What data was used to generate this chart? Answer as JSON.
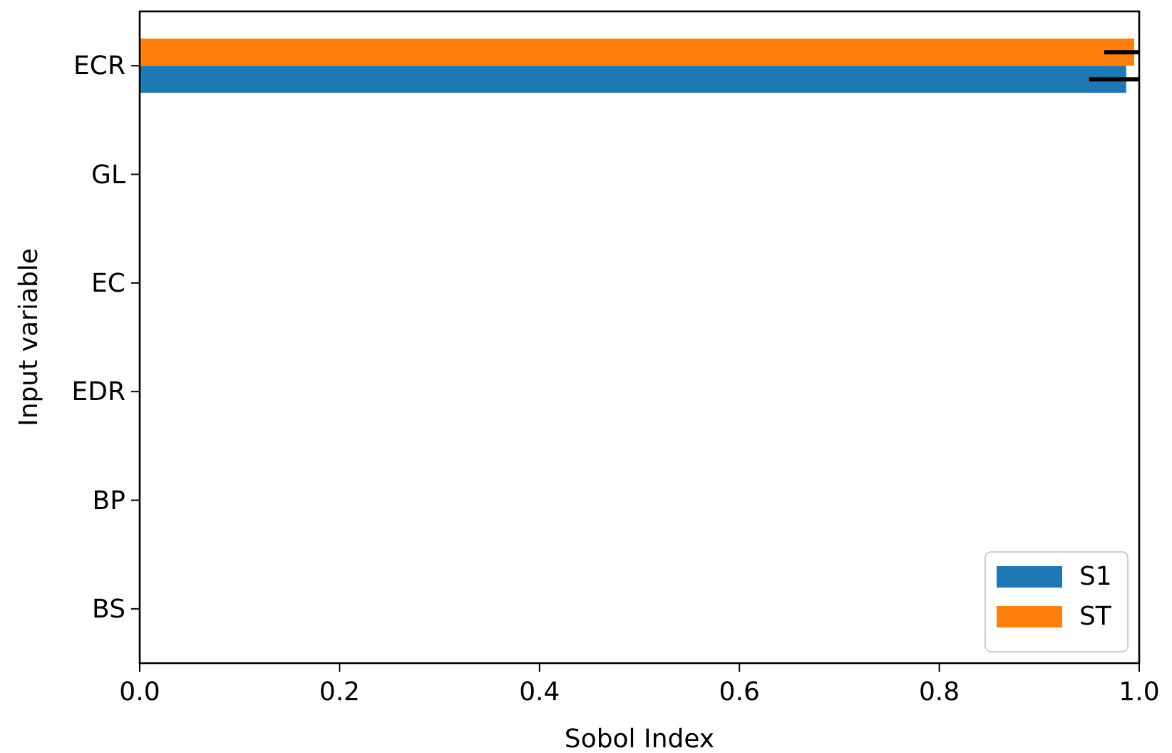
{
  "chart_data": {
    "type": "bar",
    "orientation": "horizontal",
    "xlabel": "Sobol Index",
    "ylabel": "Input variable",
    "categories": [
      "ECR",
      "GL",
      "EC",
      "EDR",
      "BP",
      "BS"
    ],
    "series": [
      {
        "name": "S1",
        "color": "#1f77b4",
        "values": [
          0.987,
          0,
          0,
          0,
          0,
          0
        ],
        "errors": [
          [
            0.95,
            1.0
          ],
          null,
          null,
          null,
          null,
          null
        ]
      },
      {
        "name": "ST",
        "color": "#ff7f0e",
        "values": [
          0.995,
          0,
          0,
          0,
          0,
          0
        ],
        "errors": [
          [
            0.965,
            1.0
          ],
          null,
          null,
          null,
          null,
          null
        ]
      }
    ],
    "xlim": [
      0,
      1
    ],
    "xticks": [
      {
        "value": 0,
        "label": "0.0"
      },
      {
        "value": 0.2,
        "label": "0.2"
      },
      {
        "value": 0.4,
        "label": "0.4"
      },
      {
        "value": 0.6,
        "label": "0.6"
      },
      {
        "value": 0.8,
        "label": "0.8"
      },
      {
        "value": 1,
        "label": "1.0"
      }
    ],
    "legend": "bottom right",
    "grid": false
  }
}
